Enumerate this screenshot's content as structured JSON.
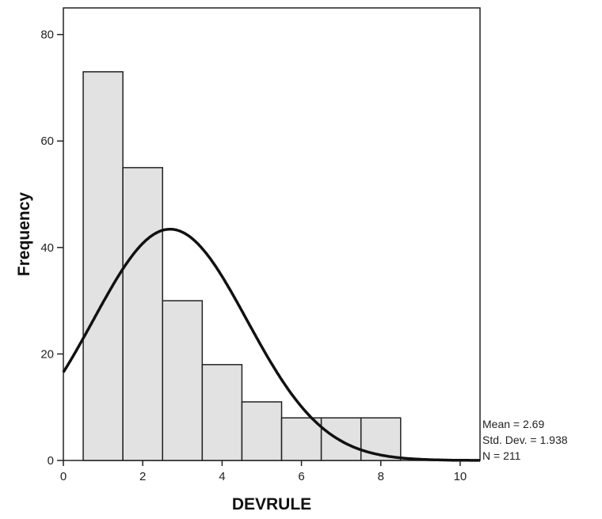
{
  "chart_data": {
    "type": "bar",
    "subtype": "histogram",
    "xlabel": "DEVRULE",
    "ylabel": "Frequency",
    "xlim": [
      0,
      10.5
    ],
    "ylim": [
      0,
      85
    ],
    "x_ticks": [
      0,
      2,
      4,
      6,
      8,
      10
    ],
    "y_ticks": [
      0,
      20,
      40,
      60,
      80
    ],
    "bins": [
      {
        "start": 0.5,
        "end": 1.5,
        "value": 73
      },
      {
        "start": 1.5,
        "end": 2.5,
        "value": 55
      },
      {
        "start": 2.5,
        "end": 3.5,
        "value": 30
      },
      {
        "start": 3.5,
        "end": 4.5,
        "value": 18
      },
      {
        "start": 4.5,
        "end": 5.5,
        "value": 11
      },
      {
        "start": 5.5,
        "end": 6.5,
        "value": 8
      },
      {
        "start": 6.5,
        "end": 7.5,
        "value": 8
      },
      {
        "start": 7.5,
        "end": 8.5,
        "value": 8
      }
    ],
    "normal_curve": {
      "mean": 2.69,
      "std_dev": 1.938,
      "n": 211,
      "bin_width": 1
    },
    "bar_fill": "#e2e2e2",
    "bar_stroke": "#222222",
    "curve_color": "#111111",
    "grid": false,
    "stats": {
      "mean_label": "Mean = 2.69",
      "std_label": "Std. Dev. = 1.938",
      "n_label": "N = 211"
    }
  }
}
